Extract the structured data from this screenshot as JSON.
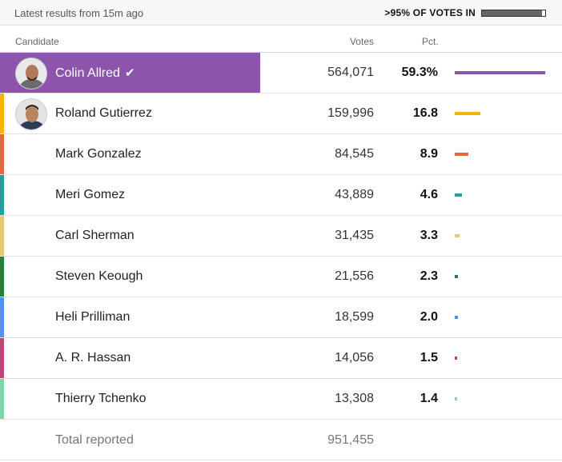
{
  "status": {
    "updated_text": "Latest results from 15m ago",
    "votes_in_text": ">95% OF VOTES IN",
    "reporting_fraction": 0.95
  },
  "columns": {
    "candidate": "Candidate",
    "votes": "Votes",
    "pct": "Pct."
  },
  "bar_max_pct": 59.3,
  "candidates": [
    {
      "name": "Colin Allred",
      "votes": "564,071",
      "pct": "59.3%",
      "pct_value": 59.3,
      "color": "#8c54ab",
      "winner": true,
      "has_photo": true
    },
    {
      "name": "Roland Gutierrez",
      "votes": "159,996",
      "pct": "16.8",
      "pct_value": 16.8,
      "color": "#f2b705",
      "winner": false,
      "has_photo": true
    },
    {
      "name": "Mark Gonzalez",
      "votes": "84,545",
      "pct": "8.9",
      "pct_value": 8.9,
      "color": "#e06a45",
      "winner": false,
      "has_photo": false
    },
    {
      "name": "Meri Gomez",
      "votes": "43,889",
      "pct": "4.6",
      "pct_value": 4.6,
      "color": "#2a9d9f",
      "winner": false,
      "has_photo": false
    },
    {
      "name": "Carl Sherman",
      "votes": "31,435",
      "pct": "3.3",
      "pct_value": 3.3,
      "color": "#e5c97d",
      "winner": false,
      "has_photo": false
    },
    {
      "name": "Steven Keough",
      "votes": "21,556",
      "pct": "2.3",
      "pct_value": 2.3,
      "color": "#2e7d3a",
      "winner": false,
      "has_photo": false
    },
    {
      "name": "Heli Prilliman",
      "votes": "18,599",
      "pct": "2.0",
      "pct_value": 2.0,
      "color": "#5b8def",
      "winner": false,
      "has_photo": false
    },
    {
      "name": "A. R. Hassan",
      "votes": "14,056",
      "pct": "1.5",
      "pct_value": 1.5,
      "color": "#c2457a",
      "winner": false,
      "has_photo": false
    },
    {
      "name": "Thierry Tchenko",
      "votes": "13,308",
      "pct": "1.4",
      "pct_value": 1.4,
      "color": "#7dd6a8",
      "winner": false,
      "has_photo": false
    }
  ],
  "total": {
    "label": "Total reported",
    "votes": "951,455"
  }
}
